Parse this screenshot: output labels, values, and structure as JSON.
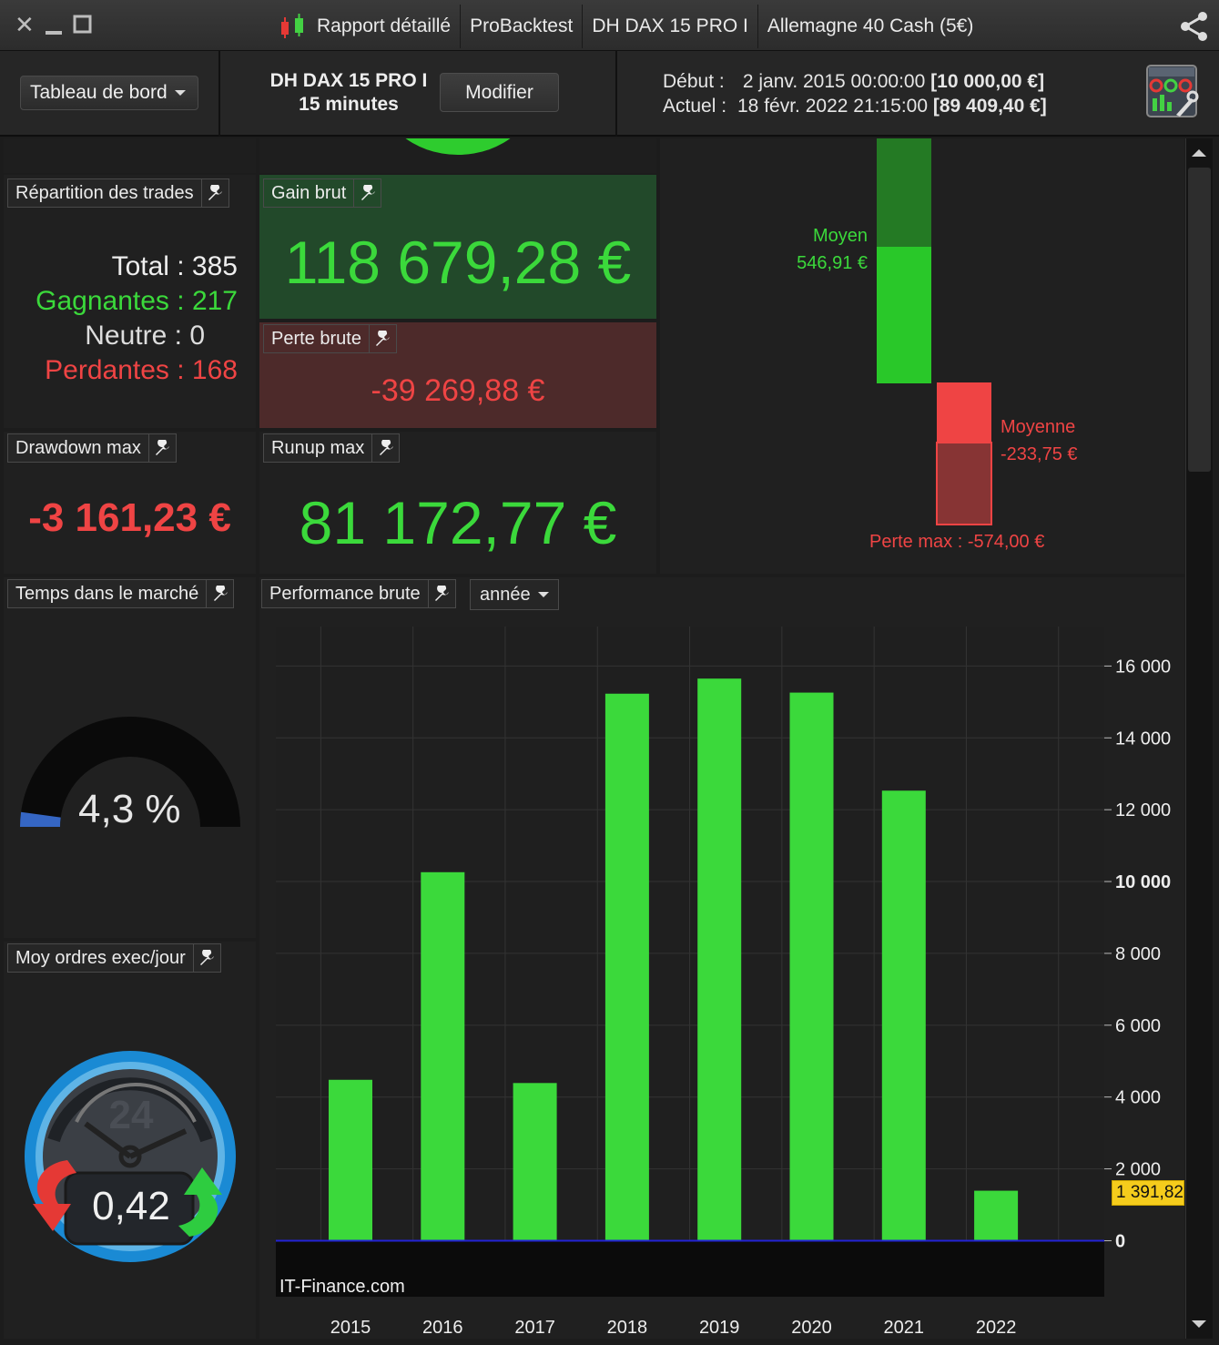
{
  "titlebar": {
    "tabs": [
      "Rapport détaillé",
      "ProBacktest",
      "DH DAX 15 PRO I",
      "Allemagne 40 Cash (5€)"
    ],
    "icons": [
      "close-icon",
      "minimize-icon",
      "maximize-icon",
      "candlestick-icon",
      "share-icon"
    ]
  },
  "header": {
    "dashboard_label": "Tableau de bord",
    "strategy_name": "DH DAX 15 PRO I",
    "timeframe": "15 minutes",
    "modify_label": "Modifier",
    "start_label": "Début :",
    "start_date": "2 janv. 2015 00:00:00",
    "start_value": "[10 000,00 €]",
    "current_label": "Actuel :",
    "current_date": "18 févr. 2022 21:15:00",
    "current_value": "[89 409,40 €]"
  },
  "trades": {
    "title": "Répartition des trades",
    "total": "Total : 385",
    "winners": "Gagnantes : 217",
    "neutral": "Neutre : 0",
    "losers": "Perdantes : 168"
  },
  "gain_brut": {
    "title": "Gain brut",
    "value": "118 679,28 €"
  },
  "perte_brute": {
    "title": "Perte brute",
    "value": "-39 269,88 €"
  },
  "drawdown": {
    "title": "Drawdown max",
    "value": "-3 161,23 €"
  },
  "runup": {
    "title": "Runup max",
    "value": "81 172,77 €"
  },
  "avg_trade": {
    "win_label": "Moyen",
    "win_value": "546,91 €",
    "loss_label": "Moyenne",
    "loss_value": "-233,75 €",
    "max_loss": "Perte max : -574,00 €"
  },
  "market_time": {
    "title": "Temps dans le marché",
    "value": "4,3 %",
    "fraction": 0.043
  },
  "orders": {
    "title": "Moy ordres exec/jour",
    "value": "0,42",
    "clock_number": "24"
  },
  "performance": {
    "title": "Performance brute",
    "period": "année",
    "watermark": "IT-Finance.com",
    "last_value": "1 391,82"
  },
  "colors": {
    "green": "#3bd93b",
    "red": "#ef4444",
    "bg": "#202020",
    "axis_line": "#2323d6",
    "badge": "#f5cc1c"
  },
  "chart_data": {
    "type": "bar",
    "categories": [
      "2015",
      "2016",
      "2017",
      "2018",
      "2019",
      "2020",
      "2021",
      "2022"
    ],
    "values": [
      4480,
      10260,
      4390,
      15230,
      15650,
      15260,
      12530,
      1392
    ],
    "ylim": [
      -1560,
      17100
    ],
    "yticks": [
      0,
      2000,
      4000,
      6000,
      8000,
      10000,
      12000,
      14000,
      16000
    ],
    "ytick_labels": [
      "0",
      "2 000",
      "4 000",
      "6 000",
      "8 000",
      "10 000",
      "12 000",
      "14 000",
      "16 000"
    ],
    "grid": true
  }
}
